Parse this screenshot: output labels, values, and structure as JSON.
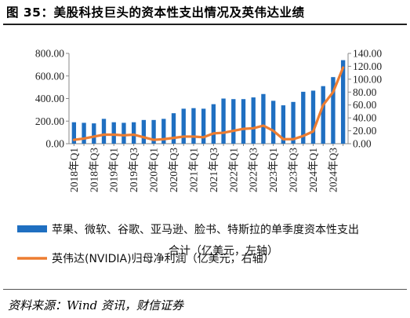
{
  "title": "图 35：美股科技巨头的资本性支出情况及英伟达业绩",
  "source": "资料来源：Wind 资讯，财信证券",
  "legend": {
    "bar_label_line1": "苹果、微软、谷歌、亚马逊、脸书、特斯拉的单季度资本性支出",
    "bar_label_line2": "合计（亿美元，左轴）",
    "line_label": "英伟达(NVIDIA)归母净利润（亿美元，右轴）"
  },
  "colors": {
    "bar": "#1f6fc1",
    "line": "#ed7d31"
  },
  "chart_data": {
    "type": "bar",
    "categories": [
      "2018年Q1",
      "2018年Q2",
      "2018年Q3",
      "2018年Q4",
      "2019年Q1",
      "2019年Q2",
      "2019年Q3",
      "2019年Q4",
      "2020年Q1",
      "2020年Q2",
      "2020年Q3",
      "2020年Q4",
      "2021年Q1",
      "2021年Q2",
      "2021年Q3",
      "2021年Q4",
      "2022年Q1",
      "2022年Q2",
      "2022年Q3",
      "2022年Q4",
      "2023年Q1",
      "2023年Q2",
      "2023年Q3",
      "2023年Q4",
      "2024年Q1",
      "2024年Q2",
      "2024年Q3",
      "2024年Q4"
    ],
    "tick_labels": [
      "2018年Q1",
      "2018年Q3",
      "2019年Q1",
      "2019年Q3",
      "2020年Q1",
      "2020年Q3",
      "2021年Q1",
      "2021年Q3",
      "2022年Q1",
      "2022年Q3",
      "2023年Q1",
      "2023年Q3",
      "2024年Q1",
      "2024年Q3"
    ],
    "series": [
      {
        "name": "苹果、微软、谷歌、亚马逊、脸书、特斯拉的单季度资本性支出合计（亿美元，左轴）",
        "type": "bar",
        "axis": "left",
        "values": [
          190,
          185,
          180,
          220,
          190,
          185,
          190,
          210,
          210,
          220,
          270,
          310,
          315,
          310,
          350,
          400,
          395,
          395,
          410,
          440,
          380,
          340,
          370,
          460,
          470,
          510,
          590,
          740
        ]
      },
      {
        "name": "英伟达(NVIDIA)归母净利润（亿美元，右轴）",
        "type": "line",
        "axis": "right",
        "values": [
          6,
          8,
          11,
          14,
          14,
          13,
          14,
          10,
          6,
          7,
          9,
          11,
          11,
          10,
          16,
          17,
          20,
          23,
          24,
          28,
          20,
          7,
          7,
          12,
          19,
          60,
          80,
          118
        ]
      }
    ],
    "left_axis": {
      "ylim": [
        0,
        800
      ],
      "ticks": [
        "0.00",
        "200.00",
        "400.00",
        "600.00",
        "800.00"
      ]
    },
    "right_axis": {
      "ylim": [
        0,
        140
      ],
      "ticks": [
        "0.00",
        "20.00",
        "40.00",
        "60.00",
        "80.00",
        "100.00",
        "120.00",
        "140.00"
      ]
    },
    "grid": false,
    "legend_placement": "bottom"
  }
}
